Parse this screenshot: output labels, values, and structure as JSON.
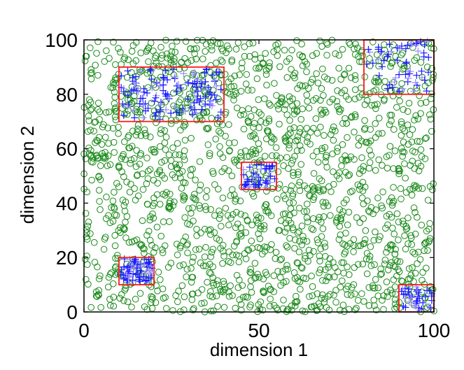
{
  "chart_data": {
    "type": "scatter",
    "xlabel": "dimension 1",
    "ylabel": "dimension 2",
    "xlim": [
      0,
      100
    ],
    "ylim": [
      0,
      100
    ],
    "xticks": [
      0,
      50,
      100
    ],
    "yticks": [
      0,
      20,
      40,
      60,
      80,
      100
    ],
    "grid": false,
    "legend": "none",
    "colors": {
      "background_points": "#1a8a1a",
      "cluster_points": "#1a1aff",
      "cluster_points_light": "#9a8aff",
      "boxes": "#ff1a1a",
      "axes": "#000000"
    },
    "background_series": {
      "marker": "circle",
      "approx_count": 1750,
      "distribution": "roughly uniform over [0,100] x [0,100]"
    },
    "clusters": [
      {
        "marker": "plus",
        "approx_count": 130,
        "box": {
          "x": [
            10,
            40
          ],
          "y": [
            70,
            90
          ]
        }
      },
      {
        "marker": "plus",
        "approx_count": 60,
        "box": {
          "x": [
            80,
            100
          ],
          "y": [
            80,
            100
          ]
        }
      },
      {
        "marker": "plus",
        "approx_count": 45,
        "box": {
          "x": [
            45,
            55
          ],
          "y": [
            45,
            55
          ]
        }
      },
      {
        "marker": "plus",
        "approx_count": 70,
        "box": {
          "x": [
            10,
            20
          ],
          "y": [
            10,
            20
          ]
        }
      },
      {
        "marker": "plus",
        "approx_count": 40,
        "box": {
          "x": [
            90,
            100
          ],
          "y": [
            0,
            10
          ]
        }
      }
    ]
  }
}
